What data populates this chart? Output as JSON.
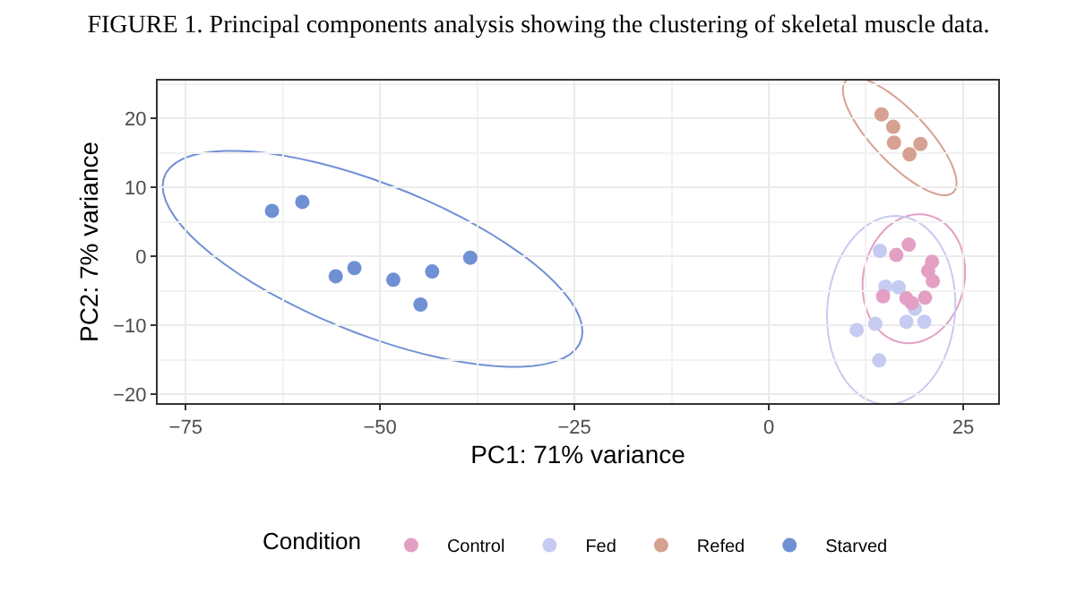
{
  "chart_data": {
    "type": "scatter",
    "title": "FIGURE 1. Principal components analysis showing the clustering of skeletal muscle data.",
    "xlabel": "PC1: 71% variance",
    "ylabel": "PC2: 7% variance",
    "legend_title": "Condition",
    "xlim": [
      -78.6,
      29.5
    ],
    "ylim": [
      -21.3,
      25.5
    ],
    "xticks": [
      -75,
      -50,
      -25,
      0,
      25
    ],
    "yticks": [
      -20,
      -10,
      0,
      10,
      20
    ],
    "grid": true,
    "legend": "bottom",
    "marker": "circle",
    "series": [
      {
        "name": "Control",
        "color": "#e3a0c4",
        "x": [
          18.0,
          16.4,
          21.0,
          20.5,
          21.1,
          14.7,
          17.7,
          18.4,
          20.1
        ],
        "values": [
          1.7,
          0.2,
          -0.8,
          -2.1,
          -3.6,
          -5.8,
          -6.1,
          -6.8,
          -6.0
        ]
      },
      {
        "name": "Fed",
        "color": "#c6cbf2",
        "x": [
          14.3,
          15.0,
          16.7,
          18.8,
          17.7,
          20.0,
          11.3,
          13.7,
          14.2
        ],
        "values": [
          0.8,
          -4.4,
          -4.5,
          -7.6,
          -9.5,
          -9.5,
          -10.7,
          -9.8,
          -15.1
        ]
      },
      {
        "name": "Refed",
        "color": "#d6a190",
        "x": [
          14.5,
          16.0,
          16.1,
          18.1,
          19.5
        ],
        "values": [
          20.6,
          18.8,
          16.5,
          14.8,
          16.3
        ]
      },
      {
        "name": "Starved",
        "color": "#7090d4",
        "x": [
          -63.9,
          -60.0,
          -55.7,
          -53.3,
          -48.3,
          -43.3,
          -44.8,
          -38.4
        ],
        "values": [
          6.6,
          7.9,
          -2.9,
          -1.7,
          -3.4,
          -2.2,
          -7.0,
          -0.2
        ]
      }
    ]
  }
}
